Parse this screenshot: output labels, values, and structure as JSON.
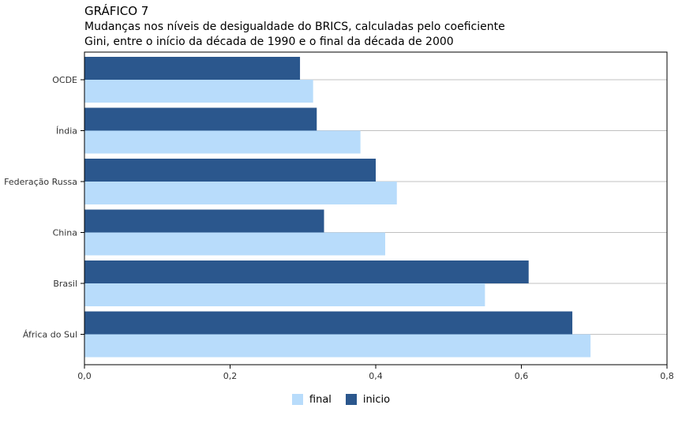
{
  "header": {
    "kicker": "GRÁFICO 7",
    "title_line1": "Mudanças nos níveis de desigualdade do BRICS, calculadas pelo coeficiente",
    "title_line2": "Gini, entre o início da década de 1990 e o final da década de 2000"
  },
  "chart_data": {
    "type": "bar",
    "orientation": "horizontal",
    "title": "Mudanças nos níveis de desigualdade do BRICS, calculadas pelo coeficiente Gini, entre o início da década de 1990 e o final da década de 2000",
    "categories": [
      "OCDE",
      "Índia",
      "Federação Russa",
      "China",
      "Brasil",
      "África do Sul"
    ],
    "series": [
      {
        "name": "inicio",
        "color": "#2b578d",
        "values": [
          0.296,
          0.319,
          0.4,
          0.329,
          0.61,
          0.67
        ]
      },
      {
        "name": "final",
        "color": "#b8dcfb",
        "values": [
          0.314,
          0.379,
          0.429,
          0.413,
          0.55,
          0.695
        ]
      }
    ],
    "xlim": [
      0,
      0.8
    ],
    "x_ticks": [
      0,
      0.2,
      0.4,
      0.6,
      0.8
    ],
    "x_tick_labels": [
      "0,0",
      "0,2",
      "0,4",
      "0,6",
      "0,8"
    ],
    "xlabel": "",
    "ylabel": "",
    "grid": true,
    "legend_position": "bottom-center",
    "legend_order": [
      "final",
      "inicio"
    ]
  }
}
